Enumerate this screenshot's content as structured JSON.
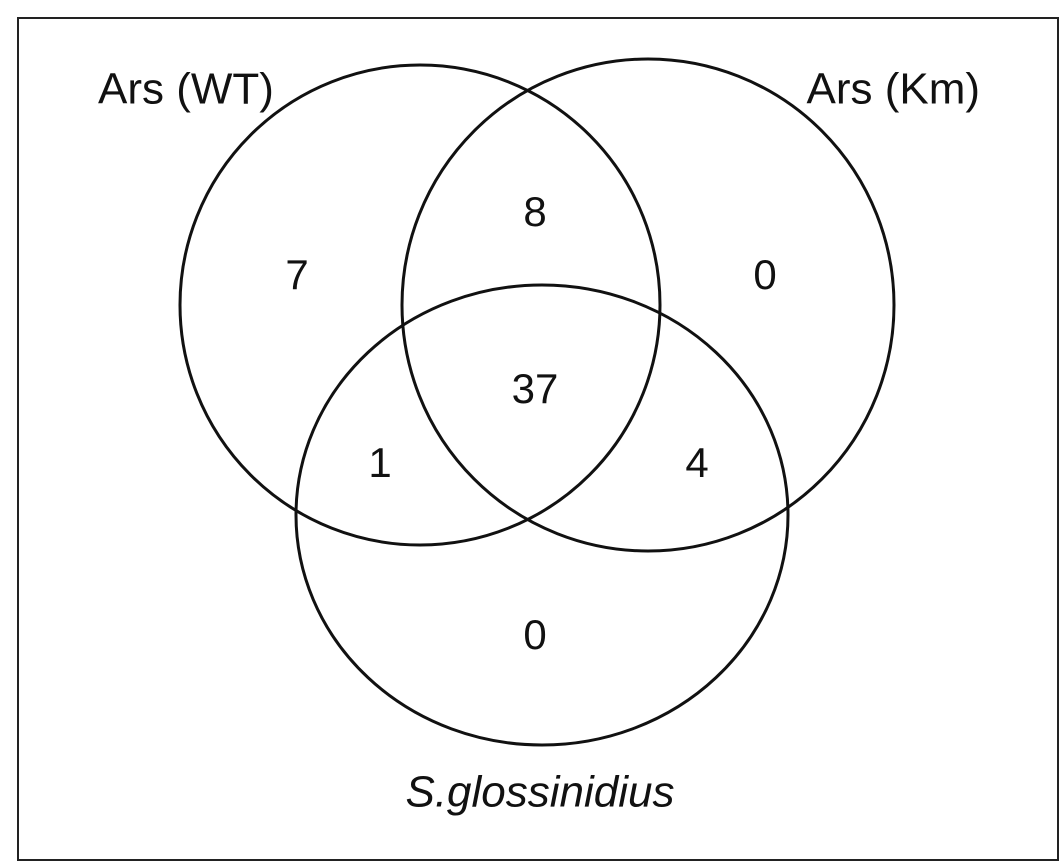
{
  "sets": [
    {
      "label": "Ars (WT)"
    },
    {
      "label": "Ars (Km)"
    },
    {
      "label": "S.glossinidius"
    }
  ],
  "regions": {
    "wt_only": 7,
    "wt_km": 8,
    "km_only": 0,
    "all": 37,
    "wt_sg": 1,
    "km_sg": 4,
    "sg_only": 0
  }
}
